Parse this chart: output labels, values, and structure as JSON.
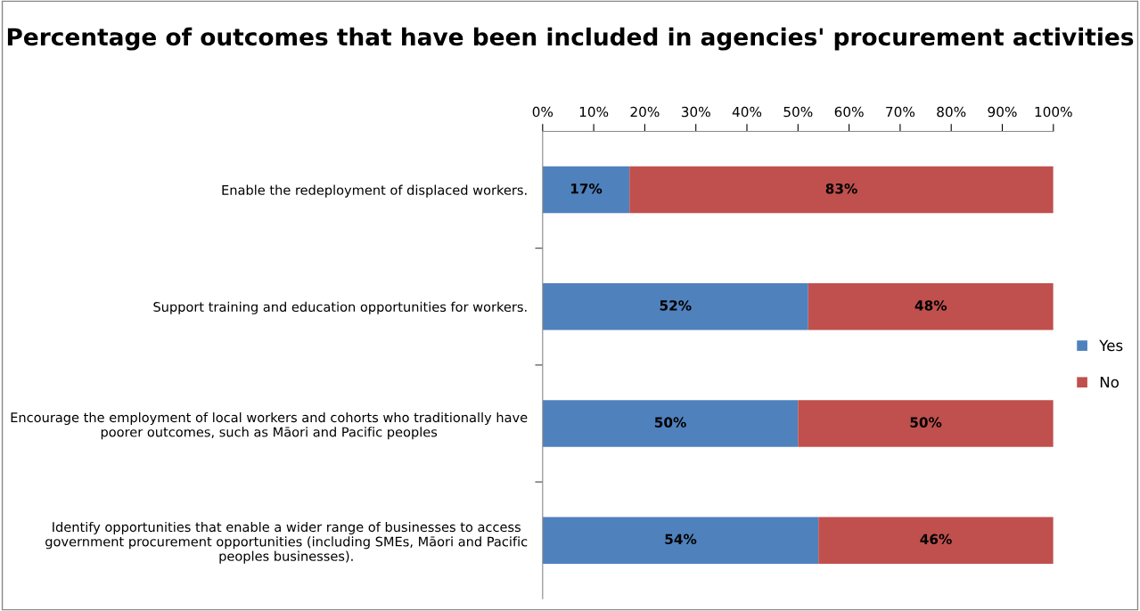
{
  "chart_data": {
    "type": "bar",
    "orientation": "horizontal",
    "stacked": true,
    "title": "Percentage of outcomes that have been included in agencies' procurement activities",
    "categories": [
      "Enable the redeployment of displaced workers.",
      "Support training and education opportunities for workers.",
      "Encourage the employment of local workers and cohorts who traditionally have poorer outcomes, such as Māori and Pacific peoples",
      "Identify opportunities that enable a wider range of businesses to access government procurement opportunities (including SMEs, Māori and Pacific peoples businesses)."
    ],
    "series": [
      {
        "name": "Yes",
        "color": "#4f81bd",
        "values": [
          17,
          52,
          50,
          54
        ],
        "value_labels": [
          "17%",
          "52%",
          "50%",
          "54%"
        ]
      },
      {
        "name": "No",
        "color": "#c0504d",
        "values": [
          83,
          48,
          50,
          46
        ],
        "value_labels": [
          "83%",
          "48%",
          "50%",
          "46%"
        ]
      }
    ],
    "xlim": [
      0,
      100
    ],
    "xticks": [
      {
        "value": 0,
        "label": "0%"
      },
      {
        "value": 10,
        "label": "10%"
      },
      {
        "value": 20,
        "label": "20%"
      },
      {
        "value": 30,
        "label": "30%"
      },
      {
        "value": 40,
        "label": "40%"
      },
      {
        "value": 50,
        "label": "50%"
      },
      {
        "value": 60,
        "label": "60%"
      },
      {
        "value": 70,
        "label": "70%"
      },
      {
        "value": 80,
        "label": "80%"
      },
      {
        "value": 90,
        "label": "90%"
      },
      {
        "value": 100,
        "label": "100%"
      }
    ],
    "legend": "right",
    "grid": false
  }
}
